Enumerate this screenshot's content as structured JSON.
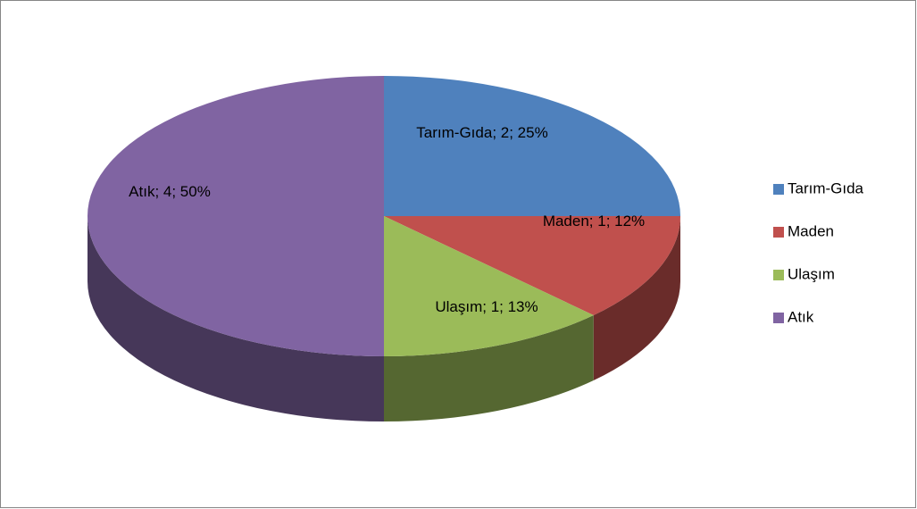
{
  "chart_data": {
    "type": "pie3d",
    "categories": [
      "Tarım-Gıda",
      "Maden",
      "Ulaşım",
      "Atık"
    ],
    "values": [
      2,
      1,
      1,
      4
    ],
    "value_labels": [
      "Tarım-Gıda; 2; 25%",
      "Maden; 1; 12%",
      "Ulaşım; 1; 13%",
      "Atık; 4; 50%"
    ],
    "colors": [
      "#4f81bd",
      "#c0504d",
      "#9bbb59",
      "#8064a2"
    ],
    "legend": "right"
  }
}
